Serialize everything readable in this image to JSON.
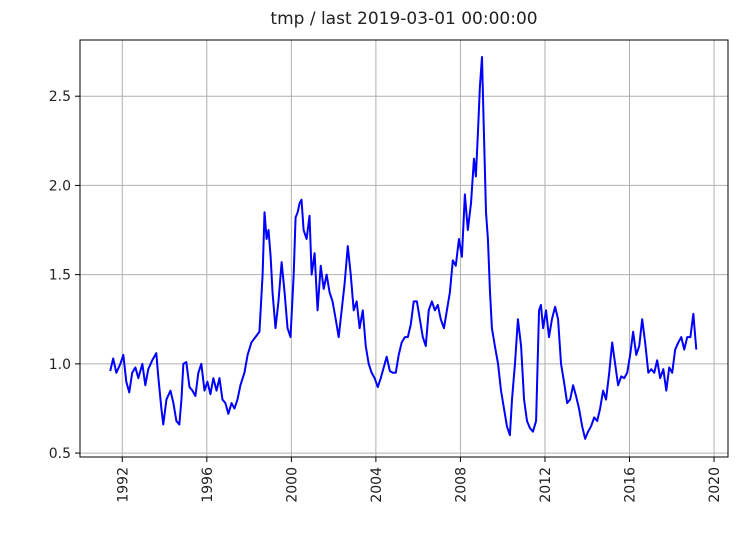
{
  "chart_data": {
    "type": "line",
    "title": "tmp / last 2019-03-01 00:00:00",
    "x": [
      1991.43,
      1991.57,
      1991.72,
      1991.91,
      1992.05,
      1992.19,
      1992.33,
      1992.47,
      1992.62,
      1992.76,
      1992.95,
      1993.09,
      1993.23,
      1993.42,
      1993.61,
      1993.71,
      1993.85,
      1993.94,
      1994.09,
      1994.28,
      1994.42,
      1994.56,
      1994.7,
      1994.8,
      1994.89,
      1995.03,
      1995.18,
      1995.32,
      1995.46,
      1995.6,
      1995.74,
      1995.89,
      1996.03,
      1996.17,
      1996.31,
      1996.46,
      1996.6,
      1996.74,
      1996.88,
      1997.02,
      1997.17,
      1997.31,
      1997.45,
      1997.59,
      1997.78,
      1997.93,
      1998.11,
      1998.3,
      1998.49,
      1998.64,
      1998.73,
      1998.83,
      1998.92,
      1999.02,
      1999.11,
      1999.25,
      1999.39,
      1999.54,
      1999.68,
      1999.82,
      1999.96,
      2000.11,
      2000.2,
      2000.3,
      2000.39,
      2000.48,
      2000.58,
      2000.72,
      2000.86,
      2000.96,
      2001.1,
      2001.24,
      2001.39,
      2001.53,
      2001.67,
      2001.81,
      2001.95,
      2002.1,
      2002.24,
      2002.38,
      2002.52,
      2002.67,
      2002.81,
      2002.95,
      2003.09,
      2003.23,
      2003.38,
      2003.52,
      2003.66,
      2003.8,
      2003.94,
      2004.09,
      2004.23,
      2004.37,
      2004.51,
      2004.66,
      2004.8,
      2004.94,
      2005.08,
      2005.22,
      2005.37,
      2005.51,
      2005.65,
      2005.79,
      2005.94,
      2006.08,
      2006.22,
      2006.36,
      2006.5,
      2006.65,
      2006.79,
      2006.93,
      2007.07,
      2007.22,
      2007.36,
      2007.5,
      2007.64,
      2007.78,
      2007.93,
      2008.07,
      2008.21,
      2008.35,
      2008.5,
      2008.64,
      2008.73,
      2008.83,
      2008.92,
      2009.02,
      2009.11,
      2009.21,
      2009.3,
      2009.4,
      2009.49,
      2009.63,
      2009.78,
      2009.92,
      2010.06,
      2010.2,
      2010.34,
      2010.44,
      2010.58,
      2010.72,
      2010.87,
      2011.01,
      2011.15,
      2011.29,
      2011.43,
      2011.58,
      2011.72,
      2011.81,
      2011.91,
      2012.05,
      2012.19,
      2012.33,
      2012.48,
      2012.62,
      2012.76,
      2012.9,
      2013.05,
      2013.19,
      2013.33,
      2013.47,
      2013.61,
      2013.76,
      2013.9,
      2014.04,
      2014.18,
      2014.33,
      2014.47,
      2014.61,
      2014.75,
      2014.89,
      2015.04,
      2015.18,
      2015.32,
      2015.46,
      2015.61,
      2015.75,
      2015.89,
      2016.03,
      2016.17,
      2016.32,
      2016.46,
      2016.6,
      2016.74,
      2016.89,
      2017.03,
      2017.17,
      2017.31,
      2017.45,
      2017.6,
      2017.74,
      2017.88,
      2018.02,
      2018.16,
      2018.31,
      2018.45,
      2018.59,
      2018.73,
      2018.88,
      2019.02,
      2019.16
    ],
    "series": [
      {
        "color": "#0000ff",
        "values": [
          0.96,
          1.03,
          0.95,
          1.0,
          1.05,
          0.9,
          0.84,
          0.95,
          0.98,
          0.92,
          1.0,
          0.88,
          0.97,
          1.02,
          1.06,
          0.92,
          0.75,
          0.66,
          0.8,
          0.85,
          0.78,
          0.68,
          0.66,
          0.8,
          1.0,
          1.01,
          0.87,
          0.85,
          0.82,
          0.95,
          1.0,
          0.85,
          0.9,
          0.83,
          0.92,
          0.85,
          0.92,
          0.8,
          0.78,
          0.72,
          0.78,
          0.75,
          0.8,
          0.88,
          0.95,
          1.05,
          1.12,
          1.15,
          1.18,
          1.5,
          1.85,
          1.7,
          1.75,
          1.6,
          1.4,
          1.2,
          1.35,
          1.57,
          1.4,
          1.2,
          1.15,
          1.5,
          1.82,
          1.85,
          1.9,
          1.92,
          1.75,
          1.7,
          1.83,
          1.5,
          1.62,
          1.3,
          1.55,
          1.42,
          1.5,
          1.4,
          1.35,
          1.25,
          1.15,
          1.3,
          1.45,
          1.66,
          1.5,
          1.3,
          1.35,
          1.2,
          1.3,
          1.1,
          1.0,
          0.95,
          0.92,
          0.87,
          0.92,
          0.98,
          1.04,
          0.96,
          0.95,
          0.95,
          1.05,
          1.12,
          1.15,
          1.15,
          1.22,
          1.35,
          1.35,
          1.25,
          1.15,
          1.1,
          1.3,
          1.35,
          1.3,
          1.33,
          1.25,
          1.2,
          1.3,
          1.4,
          1.58,
          1.55,
          1.7,
          1.6,
          1.95,
          1.75,
          1.9,
          2.15,
          2.05,
          2.3,
          2.55,
          2.72,
          2.3,
          1.85,
          1.7,
          1.4,
          1.2,
          1.1,
          1.0,
          0.85,
          0.75,
          0.65,
          0.6,
          0.8,
          1.0,
          1.25,
          1.1,
          0.8,
          0.68,
          0.64,
          0.62,
          0.68,
          1.3,
          1.33,
          1.2,
          1.3,
          1.15,
          1.25,
          1.32,
          1.25,
          1.0,
          0.9,
          0.78,
          0.8,
          0.88,
          0.82,
          0.75,
          0.65,
          0.58,
          0.62,
          0.65,
          0.7,
          0.68,
          0.75,
          0.85,
          0.8,
          0.95,
          1.12,
          1.0,
          0.88,
          0.93,
          0.92,
          0.95,
          1.05,
          1.18,
          1.05,
          1.1,
          1.25,
          1.12,
          0.95,
          0.97,
          0.95,
          1.02,
          0.92,
          0.97,
          0.85,
          0.98,
          0.95,
          1.08,
          1.12,
          1.15,
          1.08,
          1.15,
          1.15,
          1.28,
          1.08
        ]
      }
    ],
    "xlim": [
      1990.0,
      2020.66
    ],
    "xticks": [
      1992,
      1996,
      2000,
      2004,
      2008,
      2012,
      2016,
      2020
    ],
    "ylim": [
      0.478,
      2.815
    ],
    "yticks": [
      0.5,
      {
        "value": 1,
        "label": "1.0"
      },
      1.5,
      {
        "value": 2,
        "label": "2.0"
      },
      2.5
    ],
    "grid": true
  }
}
